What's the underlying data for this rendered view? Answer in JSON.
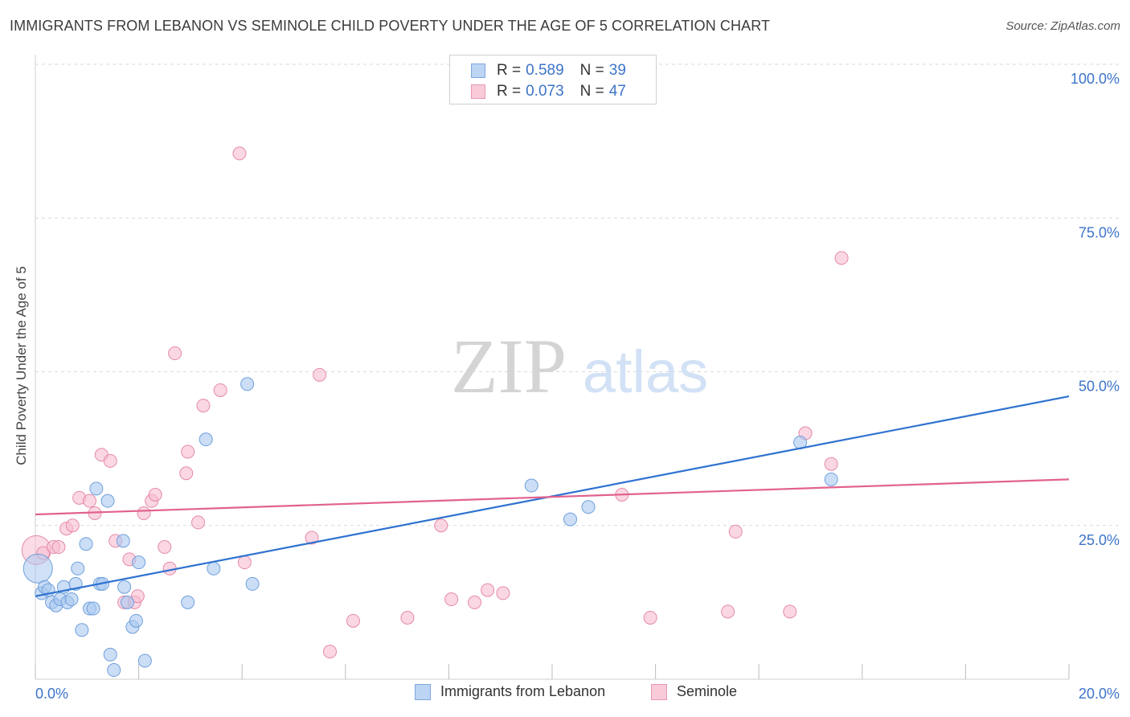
{
  "title": "IMMIGRANTS FROM LEBANON VS SEMINOLE CHILD POVERTY UNDER THE AGE OF 5 CORRELATION CHART",
  "source": "Source: ZipAtlas.com",
  "watermark": {
    "zip": "ZIP",
    "atlas": "atlas"
  },
  "legend_top": {
    "rows": [
      {
        "r_label": "R =",
        "r_value": "0.589",
        "n_label": "N =",
        "n_value": "39"
      },
      {
        "r_label": "R =",
        "r_value": "0.073",
        "n_label": "N =",
        "n_value": "47"
      }
    ]
  },
  "legend_bottom": {
    "items": [
      "Immigrants from Lebanon",
      "Seminole"
    ]
  },
  "colors": {
    "blue_fill": "#a9c8f0",
    "blue_stroke": "#6f9fdc",
    "blue_line": "#2f72d0",
    "pink_fill": "#f7bdd0",
    "pink_stroke": "#e58aa8",
    "pink_line": "#e2628e",
    "axis_text": "#3d74c9",
    "grid": "#d9d9d9"
  },
  "chart_data": {
    "type": "scatter",
    "title": "IMMIGRANTS FROM LEBANON VS SEMINOLE CHILD POVERTY UNDER THE AGE OF 5 CORRELATION CHART",
    "xlabel": "",
    "ylabel": "Child Poverty Under the Age of 5",
    "xlim": [
      0,
      20
    ],
    "ylim": [
      0,
      100
    ],
    "x_tick_labels": [
      "0.0%",
      "20.0%"
    ],
    "y_ticks": [
      25,
      50,
      75,
      100
    ],
    "y_tick_labels": [
      "25.0%",
      "50.0%",
      "75.0%",
      "100.0%"
    ],
    "series": [
      {
        "name": "Immigrants from Lebanon",
        "R": 0.589,
        "N": 39,
        "trend": {
          "x": [
            0,
            20
          ],
          "y": [
            13.5,
            46.0
          ]
        },
        "points": [
          {
            "x": 0.05,
            "y": 18.0,
            "big": true
          },
          {
            "x": 0.12,
            "y": 14.0
          },
          {
            "x": 0.18,
            "y": 15.0
          },
          {
            "x": 0.25,
            "y": 14.5
          },
          {
            "x": 0.32,
            "y": 12.5
          },
          {
            "x": 0.4,
            "y": 12.0
          },
          {
            "x": 0.48,
            "y": 13.0
          },
          {
            "x": 0.55,
            "y": 15.0
          },
          {
            "x": 0.62,
            "y": 12.5
          },
          {
            "x": 0.7,
            "y": 13.0
          },
          {
            "x": 0.78,
            "y": 15.5
          },
          {
            "x": 0.82,
            "y": 18.0
          },
          {
            "x": 0.9,
            "y": 8.0
          },
          {
            "x": 0.98,
            "y": 22.0
          },
          {
            "x": 1.05,
            "y": 11.5
          },
          {
            "x": 1.12,
            "y": 11.5
          },
          {
            "x": 1.18,
            "y": 31.0
          },
          {
            "x": 1.25,
            "y": 15.5
          },
          {
            "x": 1.3,
            "y": 15.5
          },
          {
            "x": 1.4,
            "y": 29.0
          },
          {
            "x": 1.45,
            "y": 4.0
          },
          {
            "x": 1.52,
            "y": 1.5
          },
          {
            "x": 1.7,
            "y": 22.5
          },
          {
            "x": 1.72,
            "y": 15.0
          },
          {
            "x": 1.78,
            "y": 12.5
          },
          {
            "x": 1.88,
            "y": 8.5
          },
          {
            "x": 1.95,
            "y": 9.5
          },
          {
            "x": 2.0,
            "y": 19.0
          },
          {
            "x": 2.12,
            "y": 3.0
          },
          {
            "x": 2.95,
            "y": 12.5
          },
          {
            "x": 3.3,
            "y": 39.0
          },
          {
            "x": 3.45,
            "y": 18.0
          },
          {
            "x": 4.1,
            "y": 48.0
          },
          {
            "x": 4.2,
            "y": 15.5
          },
          {
            "x": 9.6,
            "y": 31.5
          },
          {
            "x": 10.35,
            "y": 26.0
          },
          {
            "x": 10.7,
            "y": 28.0
          },
          {
            "x": 14.8,
            "y": 38.5
          },
          {
            "x": 15.4,
            "y": 32.5
          }
        ]
      },
      {
        "name": "Seminole",
        "R": 0.073,
        "N": 47,
        "trend": {
          "x": [
            0,
            20
          ],
          "y": [
            26.8,
            32.5
          ]
        },
        "points": [
          {
            "x": 0.02,
            "y": 21.0,
            "big": true
          },
          {
            "x": 0.15,
            "y": 20.5
          },
          {
            "x": 0.35,
            "y": 21.5
          },
          {
            "x": 0.45,
            "y": 21.5
          },
          {
            "x": 0.6,
            "y": 24.5
          },
          {
            "x": 0.72,
            "y": 25.0
          },
          {
            "x": 0.85,
            "y": 29.5
          },
          {
            "x": 1.05,
            "y": 29.0
          },
          {
            "x": 1.15,
            "y": 27.0
          },
          {
            "x": 1.28,
            "y": 36.5
          },
          {
            "x": 1.45,
            "y": 35.5
          },
          {
            "x": 1.55,
            "y": 22.5
          },
          {
            "x": 1.72,
            "y": 12.5
          },
          {
            "x": 1.82,
            "y": 19.5
          },
          {
            "x": 1.92,
            "y": 12.5
          },
          {
            "x": 1.98,
            "y": 13.5
          },
          {
            "x": 2.1,
            "y": 27.0
          },
          {
            "x": 2.25,
            "y": 29.0
          },
          {
            "x": 2.32,
            "y": 30.0
          },
          {
            "x": 2.5,
            "y": 21.5
          },
          {
            "x": 2.6,
            "y": 18.0
          },
          {
            "x": 2.7,
            "y": 53.0
          },
          {
            "x": 2.92,
            "y": 33.5
          },
          {
            "x": 2.95,
            "y": 37.0
          },
          {
            "x": 3.15,
            "y": 25.5
          },
          {
            "x": 3.25,
            "y": 44.5
          },
          {
            "x": 3.58,
            "y": 47.0
          },
          {
            "x": 3.95,
            "y": 85.5
          },
          {
            "x": 4.05,
            "y": 19.0
          },
          {
            "x": 5.35,
            "y": 23.0
          },
          {
            "x": 5.5,
            "y": 49.5
          },
          {
            "x": 5.7,
            "y": 4.5
          },
          {
            "x": 6.15,
            "y": 9.5
          },
          {
            "x": 7.2,
            "y": 10.0
          },
          {
            "x": 7.85,
            "y": 25.0
          },
          {
            "x": 8.05,
            "y": 13.0
          },
          {
            "x": 8.5,
            "y": 12.5
          },
          {
            "x": 8.75,
            "y": 14.5
          },
          {
            "x": 9.05,
            "y": 14.0
          },
          {
            "x": 11.35,
            "y": 30.0
          },
          {
            "x": 11.9,
            "y": 10.0
          },
          {
            "x": 13.4,
            "y": 11.0
          },
          {
            "x": 13.55,
            "y": 24.0
          },
          {
            "x": 14.6,
            "y": 11.0
          },
          {
            "x": 14.9,
            "y": 40.0
          },
          {
            "x": 15.4,
            "y": 35.0
          },
          {
            "x": 15.6,
            "y": 68.5
          }
        ]
      }
    ]
  }
}
